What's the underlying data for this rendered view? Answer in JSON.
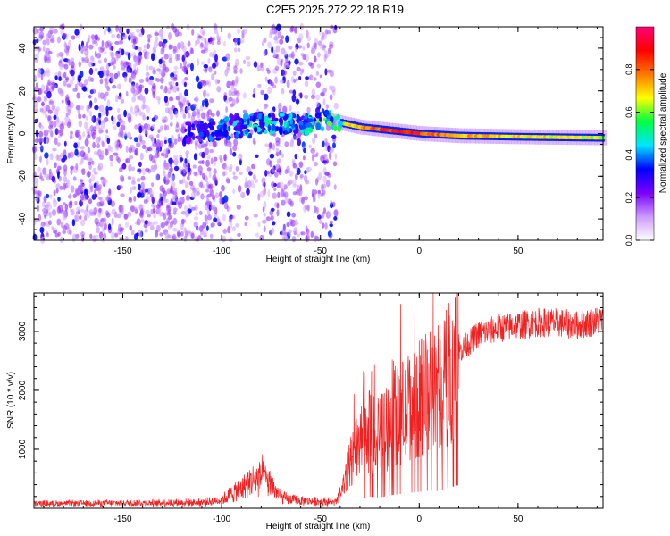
{
  "title": "C2E5.2025.272.22.18.R19",
  "colors": {
    "snr_line": "#ee2222",
    "axis": "#000000",
    "background": "#ffffff"
  },
  "chart_data": [
    {
      "type": "heatmap",
      "name": "spectrogram",
      "xlabel": "Height of straight line (km)",
      "ylabel": "Frequency (Hz)",
      "xlim": [
        -195,
        93
      ],
      "ylim": [
        -50,
        50
      ],
      "xticks": [
        -150,
        -100,
        -50,
        0,
        50
      ],
      "yticks": [
        -40,
        -20,
        0,
        20,
        40
      ],
      "colorbar": {
        "label": "Normalized spectral amplitude",
        "range": [
          0,
          1
        ],
        "ticks": [
          "0.0",
          "0.2",
          "0.4",
          "0.6",
          "0.8"
        ],
        "colormap": [
          "#ffffff",
          "#cc99ff",
          "#7a00ff",
          "#0000ff",
          "#00e5ff",
          "#00ff44",
          "#ffff00",
          "#ff7700",
          "#ff0000",
          "#ff0077"
        ]
      },
      "ridge": {
        "x": [
          -120,
          -100,
          -80,
          -60,
          -45,
          -30,
          -10,
          0,
          20,
          50,
          93
        ],
        "freq": [
          0,
          2,
          5,
          4,
          6,
          3,
          1,
          0,
          -1,
          -1.5,
          -2
        ],
        "amplitude": [
          0.3,
          0.4,
          0.5,
          0.45,
          0.6,
          0.8,
          0.95,
          0.9,
          0.8,
          0.75,
          0.7
        ]
      }
    },
    {
      "type": "line",
      "name": "snr",
      "xlabel": "Height of straight line (km)",
      "ylabel": "SNR (10 * v/v)",
      "xlim": [
        -195,
        93
      ],
      "ylim": [
        0,
        3650
      ],
      "xticks": [
        -150,
        -100,
        -50,
        0,
        50
      ],
      "yticks": [
        1000,
        2000,
        3000
      ],
      "series": [
        {
          "name": "SNR",
          "x": [
            -195,
            -150,
            -110,
            -100,
            -90,
            -80,
            -75,
            -70,
            -60,
            -50,
            -42,
            -38,
            -35,
            -30,
            -25,
            -20,
            -15,
            -10,
            -5,
            0,
            5,
            10,
            15,
            20,
            30,
            40,
            50,
            60,
            70,
            80,
            93
          ],
          "values": [
            80,
            90,
            100,
            140,
            350,
            550,
            400,
            180,
            120,
            120,
            100,
            400,
            800,
            1100,
            1300,
            1200,
            1450,
            1600,
            1750,
            1850,
            2000,
            1950,
            2300,
            2650,
            2950,
            3050,
            3100,
            3150,
            3150,
            3100,
            3200
          ]
        }
      ]
    }
  ]
}
